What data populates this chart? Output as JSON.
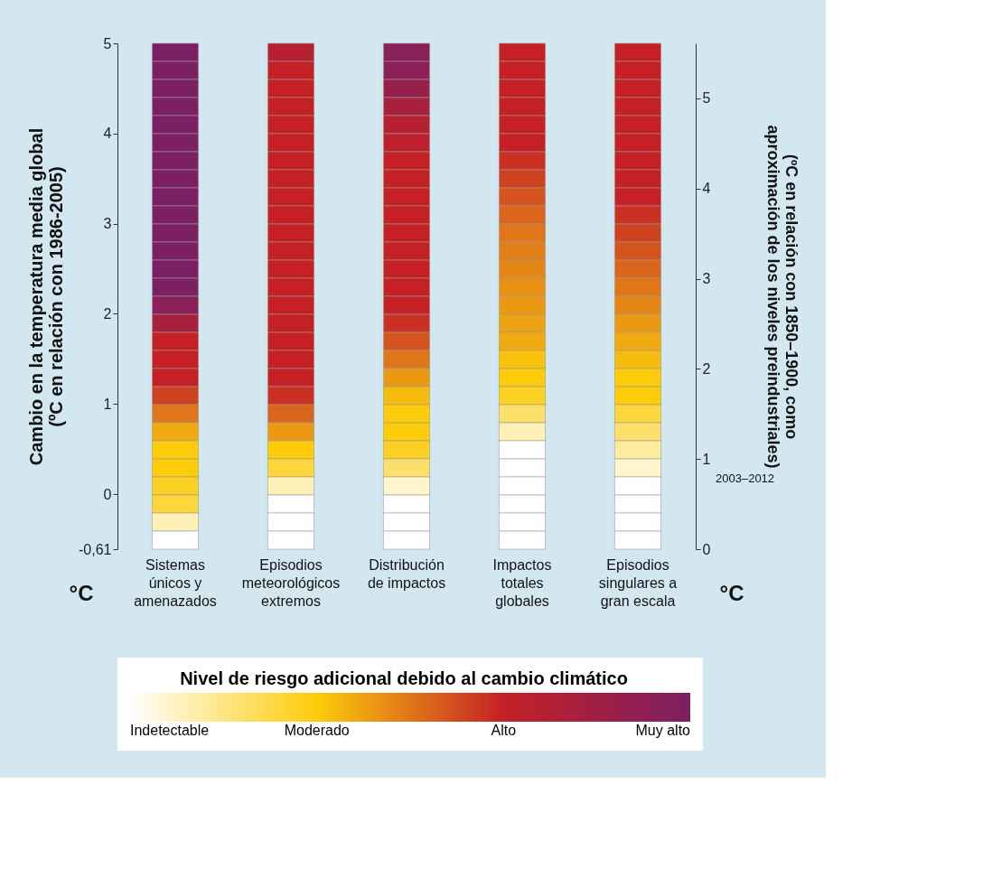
{
  "chart_data": {
    "type": "heatmap",
    "ylabel": "Cambio en la temperatura media global\n(ºC en relación con 1986-2005)",
    "y2label": "(ºC en relación con 1850–1900, como\naproximación de los niveles preindustriales)",
    "categories": [
      "Sistemas únicos y amenazados",
      "Episodios meteorológicos extremos",
      "Distribución de impactos",
      "Impactos totales globales",
      "Episodios singulares a gran escala"
    ],
    "ylim": [
      -0.61,
      5
    ],
    "yticks": [
      {
        "value": -0.61,
        "label": "-0,61"
      },
      0,
      1,
      2,
      3,
      4,
      5
    ],
    "y2lim": [
      0,
      5.61
    ],
    "y2ticks": [
      0,
      1,
      2,
      3,
      4,
      5
    ],
    "clabel": "Nivel de riesgo adicional debido al cambio climático",
    "clim": [
      0,
      3
    ],
    "cticks": [
      {
        "value": 0,
        "label": "Indetectable"
      },
      {
        "value": 1,
        "label": "Moderado"
      },
      {
        "value": 2,
        "label": "Alto"
      },
      {
        "value": 3,
        "label": "Muy alto"
      }
    ],
    "colors": [
      "#ffffff",
      "#fccc0a",
      "#c42026",
      "#7d1f63"
    ],
    "cells": [
      [
        3,
        2.2,
        2.8,
        2,
        2
      ],
      [
        3,
        2,
        2.8,
        2,
        2
      ],
      [
        3,
        2,
        2.6,
        2,
        2
      ],
      [
        3,
        2,
        2.4,
        2,
        2
      ],
      [
        3,
        2,
        2.2,
        2,
        2
      ],
      [
        3,
        2,
        2.1,
        2,
        2
      ],
      [
        3,
        2,
        2,
        1.9,
        2
      ],
      [
        3,
        2,
        2,
        1.8,
        2
      ],
      [
        3,
        2,
        2,
        1.7,
        2
      ],
      [
        3,
        2,
        2,
        1.6,
        1.9
      ],
      [
        3,
        2,
        2,
        1.5,
        1.8
      ],
      [
        3,
        2,
        2,
        1.45,
        1.7
      ],
      [
        3,
        2,
        2,
        1.4,
        1.6
      ],
      [
        3,
        2,
        2,
        1.35,
        1.5
      ],
      [
        2.8,
        2,
        2,
        1.3,
        1.4
      ],
      [
        2.4,
        2,
        1.9,
        1.25,
        1.3
      ],
      [
        2,
        2,
        1.7,
        1.2,
        1.2
      ],
      [
        2,
        2,
        1.5,
        1.05,
        1.1
      ],
      [
        2,
        2,
        1.3,
        1,
        1
      ],
      [
        1.8,
        1.9,
        1.1,
        0.9,
        1
      ],
      [
        1.5,
        1.6,
        1,
        0.6,
        0.8
      ],
      [
        1.2,
        1.3,
        1,
        0.3,
        0.6
      ],
      [
        1,
        1,
        0.9,
        0,
        0.4
      ],
      [
        1,
        0.8,
        0.6,
        0,
        0.2
      ],
      [
        0.9,
        0.3,
        0.2,
        0,
        0
      ],
      [
        0.8,
        0,
        0,
        0,
        0
      ],
      [
        0.3,
        0,
        0,
        0,
        0
      ],
      [
        0,
        0,
        0,
        0,
        0
      ]
    ],
    "annotations": [
      "2003–2012",
      "°C",
      "°C"
    ],
    "grid": false
  }
}
